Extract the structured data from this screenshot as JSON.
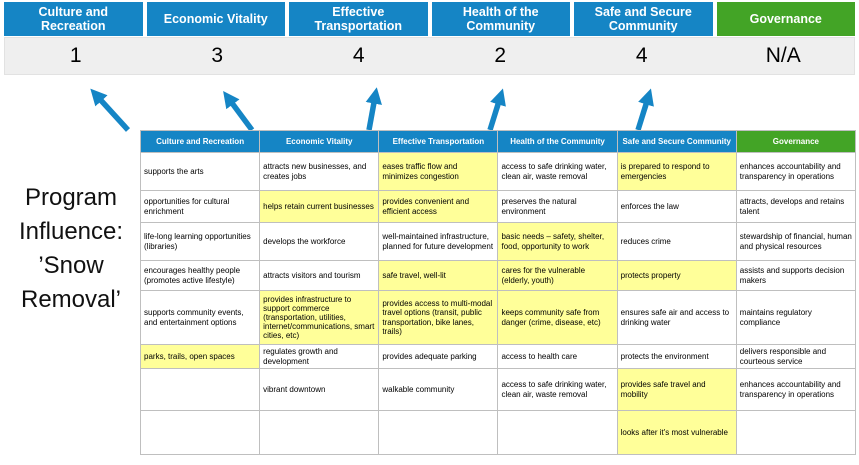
{
  "program_label": "Program Influence: ’Snow Removal’",
  "colors": {
    "blue": "#1585C5",
    "green": "#43A426",
    "highlight": "#FFFF99"
  },
  "scorecard": {
    "columns": [
      {
        "label": "Culture and Recreation",
        "score": "1",
        "color": "blue"
      },
      {
        "label": "Economic Vitality",
        "score": "3",
        "color": "blue"
      },
      {
        "label": "Effective Transportation",
        "score": "4",
        "color": "blue"
      },
      {
        "label": "Health of the Community",
        "score": "2",
        "color": "blue"
      },
      {
        "label": "Safe and Secure Community",
        "score": "4",
        "color": "blue"
      },
      {
        "label": "Governance",
        "score": "N/A",
        "color": "green"
      }
    ]
  },
  "matrix": {
    "headers": [
      {
        "label": "Culture and Recreation",
        "color": "blue"
      },
      {
        "label": "Economic Vitality",
        "color": "blue"
      },
      {
        "label": "Effective Transportation",
        "color": "blue"
      },
      {
        "label": "Health of the Community",
        "color": "blue"
      },
      {
        "label": "Safe and Secure Community",
        "color": "blue"
      },
      {
        "label": "Governance",
        "color": "green"
      }
    ],
    "rows": [
      [
        {
          "t": "supports the arts",
          "hl": false
        },
        {
          "t": "attracts new businesses, and creates jobs",
          "hl": false
        },
        {
          "t": "eases traffic flow and minimizes congestion",
          "hl": true
        },
        {
          "t": "access to safe drinking water, clean air, waste removal",
          "hl": false
        },
        {
          "t": "is prepared to respond to emergencies",
          "hl": true
        },
        {
          "t": "enhances accountability and transparency in operations",
          "hl": false
        }
      ],
      [
        {
          "t": "opportunities for cultural enrichment",
          "hl": false
        },
        {
          "t": "helps retain current businesses",
          "hl": true
        },
        {
          "t": "provides convenient and efficient access",
          "hl": true
        },
        {
          "t": "preserves the natural environment",
          "hl": false
        },
        {
          "t": "enforces the law",
          "hl": false
        },
        {
          "t": "attracts, develops and retains talent",
          "hl": false
        }
      ],
      [
        {
          "t": "life-long learning opportunities (libraries)",
          "hl": false
        },
        {
          "t": "develops the workforce",
          "hl": false
        },
        {
          "t": "well-maintained infrastructure, planned for future development",
          "hl": false
        },
        {
          "t": "basic needs – safety, shelter, food, opportunity to work",
          "hl": true
        },
        {
          "t": "reduces crime",
          "hl": false
        },
        {
          "t": "stewardship of financial, human and physical resources",
          "hl": false
        }
      ],
      [
        {
          "t": "encourages healthy people (promotes active lifestyle)",
          "hl": false
        },
        {
          "t": "attracts visitors and tourism",
          "hl": false
        },
        {
          "t": "safe travel, well-lit",
          "hl": true
        },
        {
          "t": "cares for the vulnerable (elderly, youth)",
          "hl": true
        },
        {
          "t": "protects property",
          "hl": true
        },
        {
          "t": "assists and supports decision makers",
          "hl": false
        }
      ],
      [
        {
          "t": "supports community events, and entertainment options",
          "hl": false
        },
        {
          "t": "provides infrastructure to support commerce (transportation, utilities, internet/communications, smart cities, etc)",
          "hl": true
        },
        {
          "t": "provides access to multi-modal travel options (transit, public transportation, bike lanes, trails)",
          "hl": true
        },
        {
          "t": "keeps community safe from danger (crime, disease, etc)",
          "hl": true
        },
        {
          "t": "ensures safe air and access to drinking water",
          "hl": false
        },
        {
          "t": "maintains regulatory compliance",
          "hl": false
        }
      ],
      [
        {
          "t": "parks, trails, open spaces",
          "hl": true
        },
        {
          "t": "regulates growth and development",
          "hl": false
        },
        {
          "t": "provides adequate parking",
          "hl": false
        },
        {
          "t": "access to health care",
          "hl": false
        },
        {
          "t": "protects the environment",
          "hl": false
        },
        {
          "t": "delivers responsible and courteous service",
          "hl": false
        }
      ],
      [
        {
          "t": "",
          "hl": false
        },
        {
          "t": "vibrant downtown",
          "hl": false
        },
        {
          "t": "walkable community",
          "hl": false
        },
        {
          "t": "access to safe drinking water, clean air, waste removal",
          "hl": false
        },
        {
          "t": "provides safe travel and mobility",
          "hl": true
        },
        {
          "t": "enhances accountability and transparency in operations",
          "hl": false
        }
      ],
      [
        {
          "t": "",
          "hl": false
        },
        {
          "t": "",
          "hl": false
        },
        {
          "t": "",
          "hl": false
        },
        {
          "t": "",
          "hl": false
        },
        {
          "t": "looks after it's most vulnerable",
          "hl": true
        },
        {
          "t": "",
          "hl": false
        }
      ]
    ]
  }
}
